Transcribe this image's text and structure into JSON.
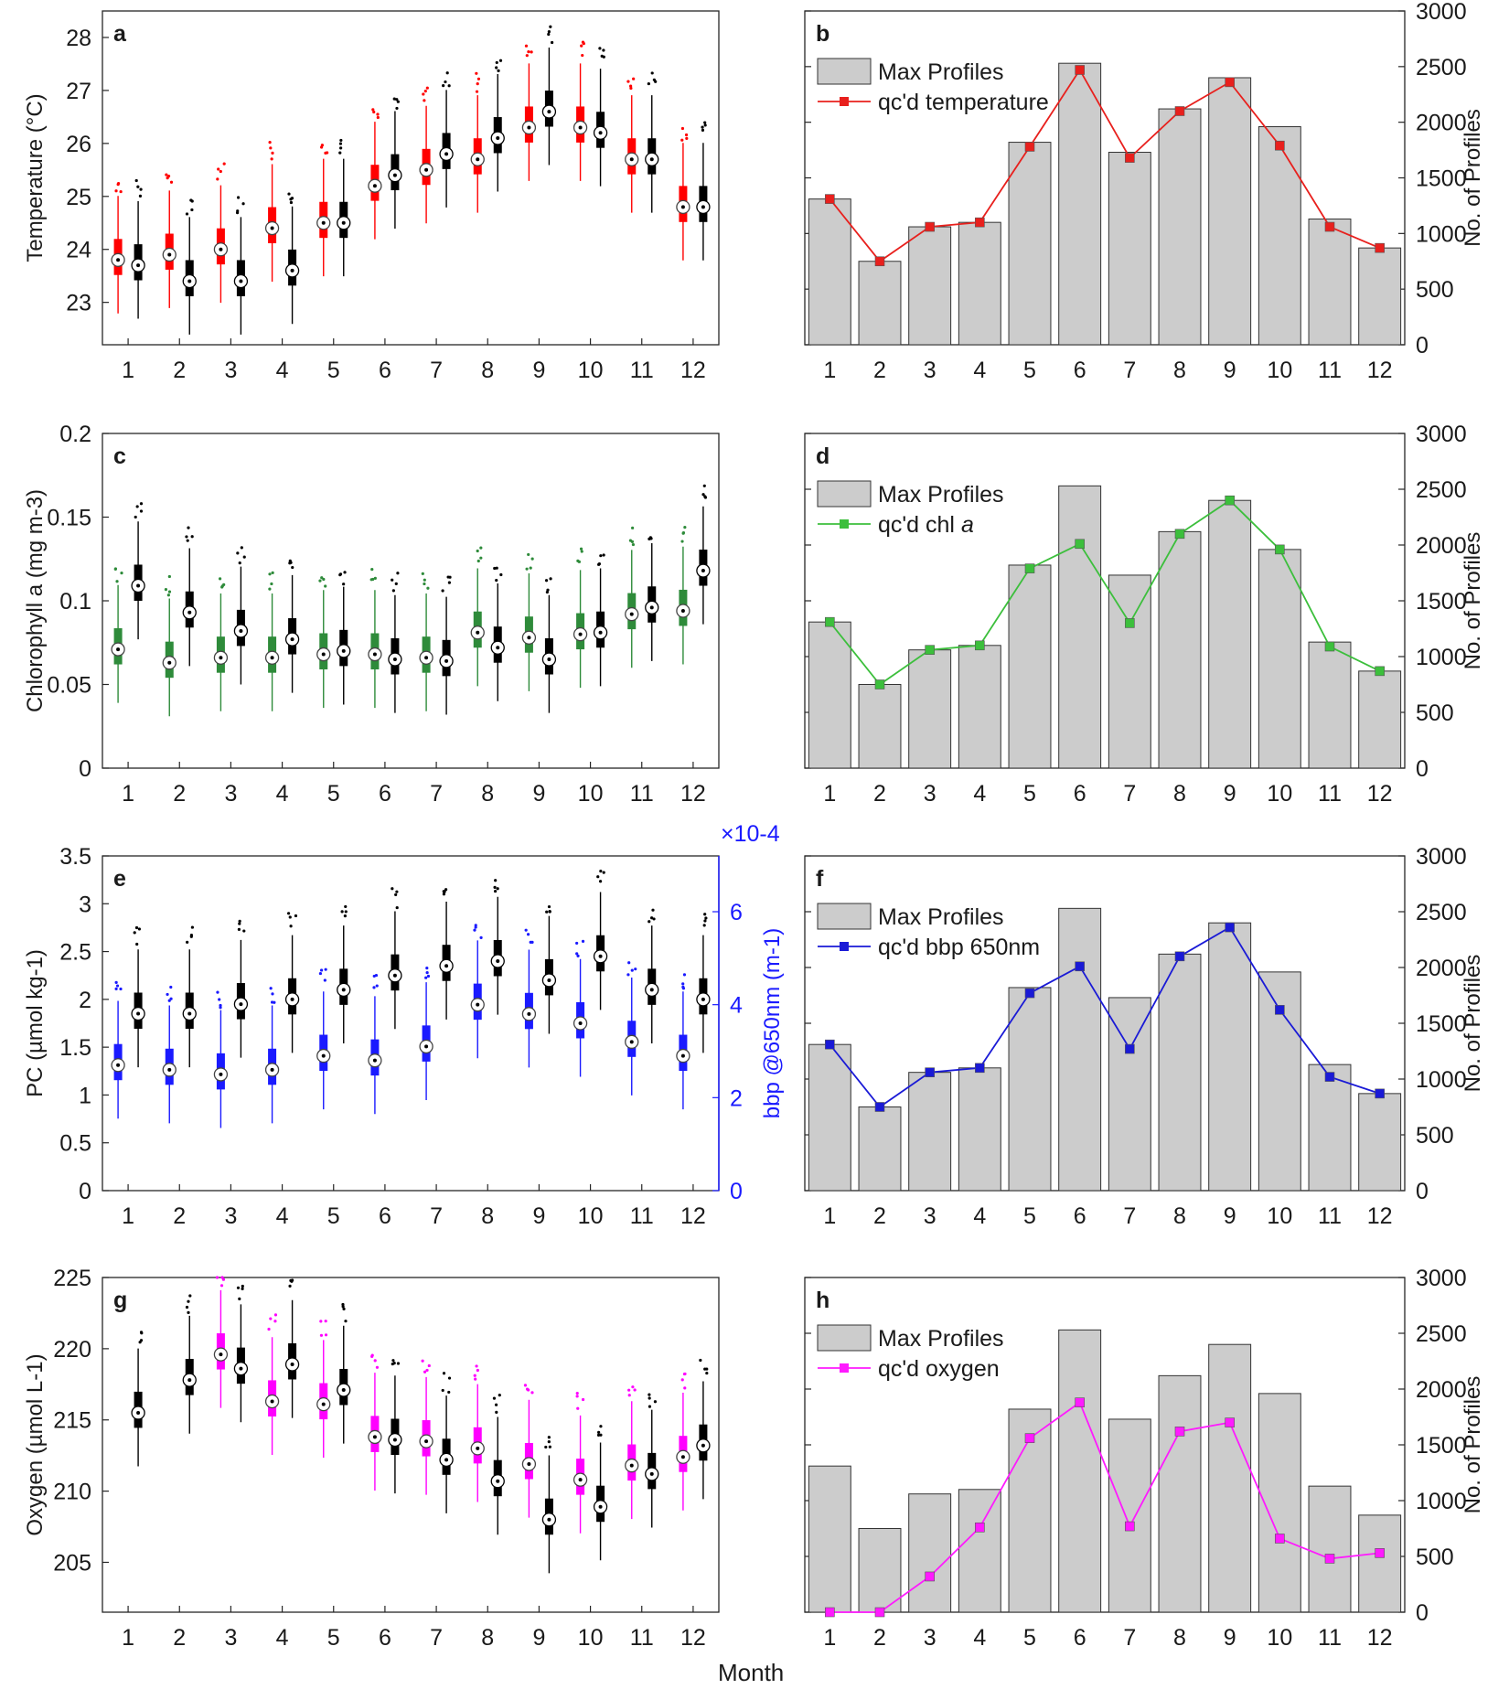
{
  "figure": {
    "xlabel_common": "Month"
  },
  "chart_data": [
    {
      "id": "a",
      "type": "box",
      "panel_label": "a",
      "ylabel": "Temperature (°C)",
      "ylim": [
        22.2,
        28.5
      ],
      "yticks": [
        23,
        24,
        25,
        26,
        27,
        28
      ],
      "categories": [
        "1",
        "2",
        "3",
        "4",
        "5",
        "6",
        "7",
        "8",
        "9",
        "10",
        "11",
        "12"
      ],
      "series": [
        {
          "color": "#ff0000",
          "medians": [
            23.8,
            23.9,
            24.0,
            24.4,
            24.5,
            25.2,
            25.5,
            25.7,
            26.3,
            26.3,
            25.7,
            24.8
          ]
        },
        {
          "color": "#000000",
          "medians": [
            23.7,
            23.4,
            23.4,
            23.6,
            24.5,
            25.4,
            25.8,
            26.1,
            26.6,
            26.2,
            25.7,
            24.8
          ]
        }
      ]
    },
    {
      "id": "b",
      "type": "bar+line",
      "panel_label": "b",
      "ylabel": "No. of Profiles",
      "ylim": [
        0,
        3000
      ],
      "yticks": [
        0,
        500,
        1000,
        1500,
        2000,
        2500,
        3000
      ],
      "categories": [
        "1",
        "2",
        "3",
        "4",
        "5",
        "6",
        "7",
        "8",
        "9",
        "10",
        "11",
        "12"
      ],
      "bar": {
        "name": "Max Profiles",
        "values": [
          1310,
          750,
          1060,
          1100,
          1820,
          2530,
          1730,
          2120,
          2400,
          1960,
          1130,
          870
        ]
      },
      "line": {
        "name": "qc'd temperature",
        "color": "#e8201d",
        "values": [
          1310,
          750,
          1060,
          1100,
          1780,
          2470,
          1680,
          2100,
          2360,
          1790,
          1060,
          870
        ]
      },
      "legend_location": "top-left"
    },
    {
      "id": "c",
      "type": "box",
      "panel_label": "c",
      "ylabel": "Chlorophyll a (mg m-3)",
      "ylim": [
        0,
        0.2
      ],
      "yticks": [
        0,
        0.05,
        0.1,
        0.15,
        0.2
      ],
      "categories": [
        "1",
        "2",
        "3",
        "4",
        "5",
        "6",
        "7",
        "8",
        "9",
        "10",
        "11",
        "12"
      ],
      "series": [
        {
          "color": "#2e8b3a",
          "medians": [
            0.071,
            0.063,
            0.066,
            0.066,
            0.068,
            0.068,
            0.066,
            0.081,
            0.078,
            0.08,
            0.092,
            0.094
          ]
        },
        {
          "color": "#000000",
          "medians": [
            0.109,
            0.093,
            0.082,
            0.077,
            0.07,
            0.065,
            0.064,
            0.072,
            0.065,
            0.081,
            0.096,
            0.118
          ]
        }
      ]
    },
    {
      "id": "d",
      "type": "bar+line",
      "panel_label": "d",
      "ylabel": "No. of Profiles",
      "ylim": [
        0,
        3000
      ],
      "yticks": [
        0,
        500,
        1000,
        1500,
        2000,
        2500,
        3000
      ],
      "categories": [
        "1",
        "2",
        "3",
        "4",
        "5",
        "6",
        "7",
        "8",
        "9",
        "10",
        "11",
        "12"
      ],
      "bar": {
        "name": "Max Profiles",
        "values": [
          1310,
          750,
          1060,
          1100,
          1820,
          2530,
          1730,
          2120,
          2400,
          1960,
          1130,
          870
        ]
      },
      "line": {
        "name": "qc'd chl ",
        "name_italic": "a",
        "color": "#3cbf3c",
        "values": [
          1310,
          750,
          1060,
          1100,
          1790,
          2010,
          1300,
          2100,
          2400,
          1960,
          1090,
          870
        ]
      },
      "legend_location": "top-left"
    },
    {
      "id": "e",
      "type": "box",
      "panel_label": "e",
      "ylabel": "PC (µmol kg-1)",
      "ylim": [
        0,
        3.5
      ],
      "yticks": [
        0,
        0.5,
        1,
        1.5,
        2,
        2.5,
        3,
        3.5
      ],
      "ylabel_right": "bbp @650nm (m-1)",
      "ylim_right": [
        0,
        7.2
      ],
      "yticks_right": [
        0,
        2,
        4,
        6
      ],
      "right_exponent": "×10-4",
      "categories": [
        "1",
        "2",
        "3",
        "4",
        "5",
        "6",
        "7",
        "8",
        "9",
        "10",
        "11",
        "12"
      ],
      "series": [
        {
          "color": "#1a1aff",
          "axis": "right",
          "medians": [
            2.7,
            2.6,
            2.5,
            2.6,
            2.9,
            2.8,
            3.1,
            4.0,
            3.8,
            3.6,
            3.2,
            2.9
          ]
        },
        {
          "color": "#000000",
          "axis": "left",
          "medians": [
            1.85,
            1.85,
            1.95,
            2.0,
            2.1,
            2.25,
            2.35,
            2.4,
            2.2,
            2.45,
            2.1,
            2.0
          ]
        }
      ]
    },
    {
      "id": "f",
      "type": "bar+line",
      "panel_label": "f",
      "ylabel": "No. of Profiles",
      "ylim": [
        0,
        3000
      ],
      "yticks": [
        0,
        500,
        1000,
        1500,
        2000,
        2500,
        3000
      ],
      "categories": [
        "1",
        "2",
        "3",
        "4",
        "5",
        "6",
        "7",
        "8",
        "9",
        "10",
        "11",
        "12"
      ],
      "bar": {
        "name": "Max Profiles",
        "values": [
          1310,
          750,
          1060,
          1100,
          1820,
          2530,
          1730,
          2120,
          2400,
          1960,
          1130,
          870
        ]
      },
      "line": {
        "name": "qc'd bbp 650nm",
        "color": "#1a1ad6",
        "values": [
          1310,
          750,
          1060,
          1100,
          1770,
          2010,
          1270,
          2100,
          2360,
          1620,
          1020,
          870
        ]
      },
      "legend_location": "top-left"
    },
    {
      "id": "g",
      "type": "box",
      "panel_label": "g",
      "ylabel": "Oxygen (µmol L-1)",
      "ylim": [
        201.5,
        225
      ],
      "yticks": [
        205,
        210,
        215,
        220,
        225
      ],
      "categories": [
        "1",
        "2",
        "3",
        "4",
        "5",
        "6",
        "7",
        "8",
        "9",
        "10",
        "11",
        "12"
      ],
      "series": [
        {
          "color": "#ff00ff",
          "medians": [
            null,
            null,
            219.6,
            216.3,
            216.1,
            213.8,
            213.5,
            213.0,
            211.9,
            210.8,
            211.8,
            212.4
          ]
        },
        {
          "color": "#000000",
          "medians": [
            215.5,
            217.8,
            218.6,
            218.9,
            217.1,
            213.6,
            212.2,
            210.7,
            208.0,
            208.9,
            211.2,
            213.2
          ]
        }
      ]
    },
    {
      "id": "h",
      "type": "bar+line",
      "panel_label": "h",
      "ylabel": "No. of Profiles",
      "ylim": [
        0,
        3000
      ],
      "yticks": [
        0,
        500,
        1000,
        1500,
        2000,
        2500,
        3000
      ],
      "categories": [
        "1",
        "2",
        "3",
        "4",
        "5",
        "6",
        "7",
        "8",
        "9",
        "10",
        "11",
        "12"
      ],
      "bar": {
        "name": "Max Profiles",
        "values": [
          1310,
          750,
          1060,
          1100,
          1820,
          2530,
          1730,
          2120,
          2400,
          1960,
          1130,
          870
        ]
      },
      "line": {
        "name": "qc'd oxygen",
        "color": "#ff1aff",
        "values": [
          0,
          0,
          320,
          760,
          1560,
          1880,
          770,
          1620,
          1700,
          660,
          480,
          530
        ]
      },
      "legend_location": "top-left"
    }
  ]
}
